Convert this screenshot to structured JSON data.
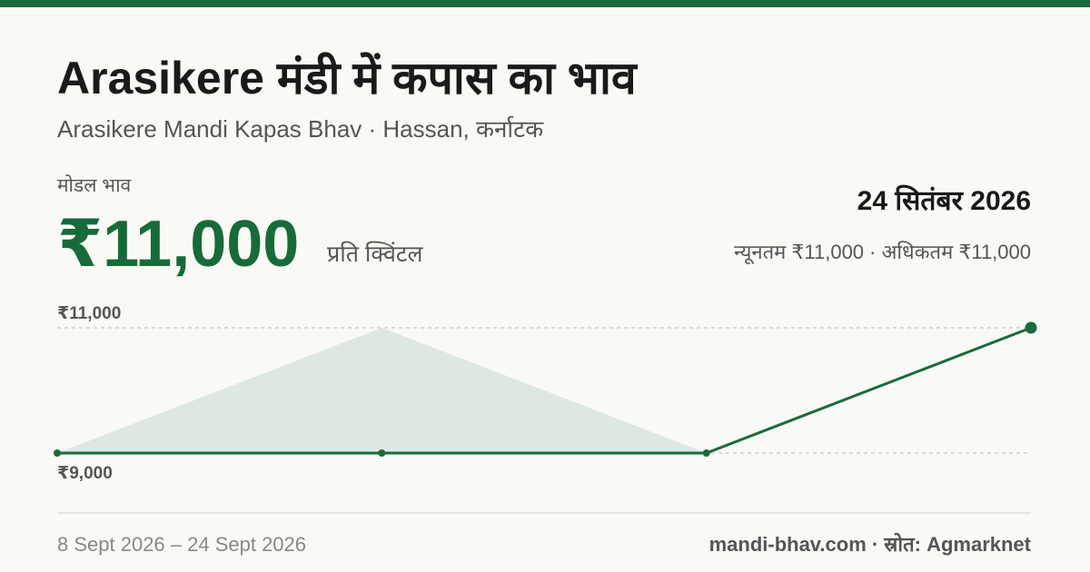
{
  "header": {
    "title": "Arasikere मंडी में कपास का भाव",
    "subtitle": "Arasikere Mandi Kapas Bhav · Hassan, कर्नाटक"
  },
  "summary": {
    "label": "मोडल भाव",
    "price": "₹11,000",
    "unit": "प्रति क्विंटल",
    "date": "24 सितंबर 2026",
    "range": "न्यूनतम ₹11,000 · अधिकतम ₹11,000"
  },
  "chart_data": {
    "type": "line",
    "values": [
      9000,
      9000,
      9000,
      11000
    ],
    "range_low": [
      9000,
      9000,
      9000,
      11000
    ],
    "range_high": [
      9000,
      11000,
      9000,
      11000
    ],
    "color": "#176b3a",
    "band_color": "#dde8e0",
    "ylim": [
      9000,
      11000
    ],
    "yticks": [
      {
        "value": 11000,
        "label": "₹11,000"
      },
      {
        "value": 9000,
        "label": "₹9,000"
      }
    ],
    "grid": true
  },
  "footer": {
    "period": "8 Sept 2026 – 24 Sept 2026",
    "source": "mandi-bhav.com · स्रोत: Agmarknet"
  }
}
